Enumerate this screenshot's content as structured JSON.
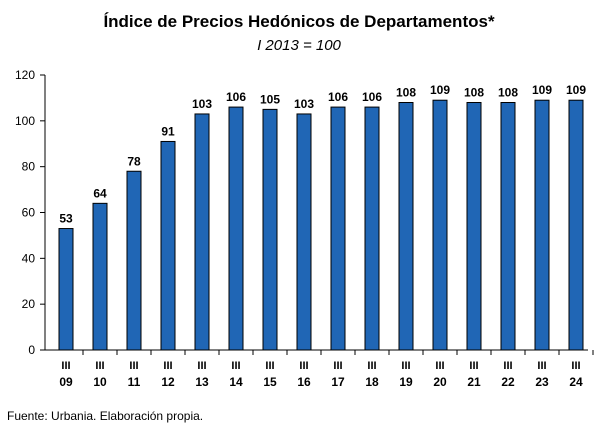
{
  "chart_data": {
    "type": "bar",
    "title": "Índice de Precios Hedónicos de Departamentos*",
    "subtitle": "I 2013 = 100",
    "source": "Fuente: Urbania. Elaboración propia.",
    "categories": [
      {
        "quarter": "III",
        "year": "09"
      },
      {
        "quarter": "III",
        "year": "10"
      },
      {
        "quarter": "III",
        "year": "11"
      },
      {
        "quarter": "III",
        "year": "12"
      },
      {
        "quarter": "III",
        "year": "13"
      },
      {
        "quarter": "III",
        "year": "14"
      },
      {
        "quarter": "III",
        "year": "15"
      },
      {
        "quarter": "III",
        "year": "16"
      },
      {
        "quarter": "III",
        "year": "17"
      },
      {
        "quarter": "III",
        "year": "18"
      },
      {
        "quarter": "III",
        "year": "19"
      },
      {
        "quarter": "III",
        "year": "20"
      },
      {
        "quarter": "III",
        "year": "21"
      },
      {
        "quarter": "III",
        "year": "22"
      },
      {
        "quarter": "III",
        "year": "23"
      },
      {
        "quarter": "III",
        "year": "24"
      }
    ],
    "values": [
      53,
      64,
      78,
      91,
      103,
      106,
      105,
      103,
      106,
      106,
      108,
      109,
      108,
      108,
      109,
      109
    ],
    "data_labels": [
      "53",
      "64",
      "78",
      "91",
      "103",
      "106",
      "105",
      "103",
      "106",
      "106",
      "108",
      "109",
      "108",
      "108",
      "109",
      "109"
    ],
    "ylim": [
      0,
      120
    ],
    "yticks": [
      0,
      20,
      40,
      60,
      80,
      100,
      120
    ],
    "xlabel": "",
    "ylabel": "",
    "grid": false,
    "legend": "none",
    "bar_color": "#2066B5",
    "bar_edge_color": "#000000"
  }
}
